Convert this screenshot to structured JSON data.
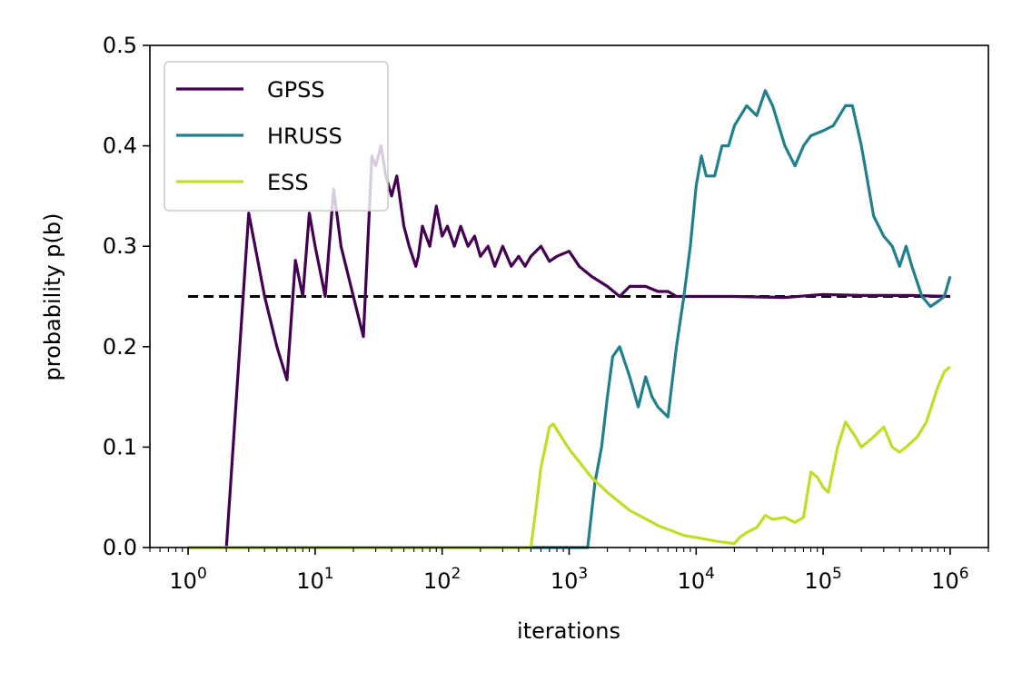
{
  "chart_data": {
    "type": "line",
    "xlabel": "iterations",
    "ylabel": "probability p(b)",
    "xscale": "log",
    "xlim": [
      0.5,
      2000000
    ],
    "ylim": [
      0,
      0.5
    ],
    "x_ticks": [
      {
        "value": 1,
        "base": "10",
        "exp": "0"
      },
      {
        "value": 10,
        "base": "10",
        "exp": "1"
      },
      {
        "value": 100,
        "base": "10",
        "exp": "2"
      },
      {
        "value": 1000,
        "base": "10",
        "exp": "3"
      },
      {
        "value": 10000,
        "base": "10",
        "exp": "4"
      },
      {
        "value": 100000,
        "base": "10",
        "exp": "5"
      },
      {
        "value": 1000000,
        "base": "10",
        "exp": "6"
      }
    ],
    "y_ticks": [
      {
        "value": 0.0,
        "label": "0.0"
      },
      {
        "value": 0.1,
        "label": "0.1"
      },
      {
        "value": 0.2,
        "label": "0.2"
      },
      {
        "value": 0.3,
        "label": "0.3"
      },
      {
        "value": 0.4,
        "label": "0.4"
      },
      {
        "value": 0.5,
        "label": "0.5"
      }
    ],
    "reference_line": {
      "y": 0.25,
      "x": [
        1,
        1000000
      ],
      "style": "dashed",
      "color": "#000000"
    },
    "legend_position": "top-left",
    "series": [
      {
        "name": "GPSS",
        "color": "#440154",
        "points": [
          [
            2,
            0.0
          ],
          [
            3,
            0.333
          ],
          [
            4,
            0.25
          ],
          [
            5,
            0.2
          ],
          [
            6,
            0.167
          ],
          [
            7,
            0.286
          ],
          [
            8,
            0.25
          ],
          [
            9,
            0.333
          ],
          [
            10,
            0.3
          ],
          [
            12,
            0.25
          ],
          [
            14,
            0.357
          ],
          [
            16,
            0.3
          ],
          [
            20,
            0.25
          ],
          [
            24,
            0.21
          ],
          [
            28,
            0.39
          ],
          [
            30,
            0.38
          ],
          [
            33,
            0.4
          ],
          [
            36,
            0.37
          ],
          [
            40,
            0.35
          ],
          [
            44,
            0.37
          ],
          [
            50,
            0.32
          ],
          [
            55,
            0.3
          ],
          [
            62,
            0.28
          ],
          [
            65,
            0.29
          ],
          [
            70,
            0.32
          ],
          [
            80,
            0.3
          ],
          [
            90,
            0.34
          ],
          [
            100,
            0.31
          ],
          [
            110,
            0.32
          ],
          [
            125,
            0.3
          ],
          [
            140,
            0.32
          ],
          [
            160,
            0.3
          ],
          [
            180,
            0.31
          ],
          [
            200,
            0.29
          ],
          [
            230,
            0.3
          ],
          [
            260,
            0.28
          ],
          [
            300,
            0.3
          ],
          [
            350,
            0.28
          ],
          [
            400,
            0.29
          ],
          [
            450,
            0.28
          ],
          [
            500,
            0.29
          ],
          [
            600,
            0.3
          ],
          [
            700,
            0.285
          ],
          [
            800,
            0.29
          ],
          [
            1000,
            0.295
          ],
          [
            1200,
            0.28
          ],
          [
            1500,
            0.27
          ],
          [
            2000,
            0.26
          ],
          [
            2500,
            0.25
          ],
          [
            3000,
            0.26
          ],
          [
            4000,
            0.26
          ],
          [
            5000,
            0.255
          ],
          [
            6000,
            0.255
          ],
          [
            7000,
            0.25
          ],
          [
            8000,
            0.25
          ],
          [
            10000,
            0.25
          ],
          [
            20000,
            0.25
          ],
          [
            50000,
            0.249
          ],
          [
            100000,
            0.252
          ],
          [
            200000,
            0.251
          ],
          [
            500000,
            0.251
          ],
          [
            1000000,
            0.25
          ]
        ]
      },
      {
        "name": "HRUSS",
        "color": "#21808d",
        "points": [
          [
            1,
            0.0
          ],
          [
            1400,
            0.0
          ],
          [
            1600,
            0.065
          ],
          [
            1800,
            0.1
          ],
          [
            2000,
            0.15
          ],
          [
            2200,
            0.19
          ],
          [
            2500,
            0.2
          ],
          [
            3000,
            0.17
          ],
          [
            3500,
            0.14
          ],
          [
            4000,
            0.17
          ],
          [
            4500,
            0.15
          ],
          [
            5000,
            0.14
          ],
          [
            6000,
            0.13
          ],
          [
            7000,
            0.2
          ],
          [
            8000,
            0.25
          ],
          [
            9000,
            0.3
          ],
          [
            10000,
            0.36
          ],
          [
            11000,
            0.39
          ],
          [
            12000,
            0.37
          ],
          [
            14000,
            0.37
          ],
          [
            16000,
            0.4
          ],
          [
            18000,
            0.4
          ],
          [
            20000,
            0.42
          ],
          [
            25000,
            0.44
          ],
          [
            30000,
            0.43
          ],
          [
            35000,
            0.455
          ],
          [
            40000,
            0.44
          ],
          [
            50000,
            0.4
          ],
          [
            60000,
            0.38
          ],
          [
            70000,
            0.4
          ],
          [
            80000,
            0.41
          ],
          [
            100000,
            0.415
          ],
          [
            120000,
            0.42
          ],
          [
            150000,
            0.44
          ],
          [
            170000,
            0.44
          ],
          [
            200000,
            0.4
          ],
          [
            250000,
            0.33
          ],
          [
            300000,
            0.31
          ],
          [
            350000,
            0.3
          ],
          [
            400000,
            0.28
          ],
          [
            450000,
            0.3
          ],
          [
            500000,
            0.28
          ],
          [
            600000,
            0.25
          ],
          [
            700000,
            0.24
          ],
          [
            800000,
            0.245
          ],
          [
            900000,
            0.25
          ],
          [
            1000000,
            0.27
          ]
        ]
      },
      {
        "name": "ESS",
        "color": "#bddf26",
        "points": [
          [
            1,
            0.0
          ],
          [
            500,
            0.0
          ],
          [
            550,
            0.04
          ],
          [
            600,
            0.08
          ],
          [
            650,
            0.1
          ],
          [
            700,
            0.12
          ],
          [
            750,
            0.123
          ],
          [
            1000,
            0.098
          ],
          [
            1500,
            0.07
          ],
          [
            2000,
            0.055
          ],
          [
            3000,
            0.037
          ],
          [
            5000,
            0.022
          ],
          [
            8000,
            0.012
          ],
          [
            10000,
            0.01
          ],
          [
            15000,
            0.006
          ],
          [
            20000,
            0.004
          ],
          [
            22000,
            0.01
          ],
          [
            25000,
            0.015
          ],
          [
            30000,
            0.02
          ],
          [
            35000,
            0.032
          ],
          [
            40000,
            0.028
          ],
          [
            50000,
            0.03
          ],
          [
            60000,
            0.025
          ],
          [
            70000,
            0.03
          ],
          [
            80000,
            0.075
          ],
          [
            90000,
            0.07
          ],
          [
            100000,
            0.06
          ],
          [
            110000,
            0.055
          ],
          [
            130000,
            0.1
          ],
          [
            150000,
            0.125
          ],
          [
            180000,
            0.11
          ],
          [
            200000,
            0.1
          ],
          [
            250000,
            0.11
          ],
          [
            300000,
            0.12
          ],
          [
            350000,
            0.1
          ],
          [
            400000,
            0.095
          ],
          [
            450000,
            0.1
          ],
          [
            550000,
            0.11
          ],
          [
            650000,
            0.125
          ],
          [
            800000,
            0.16
          ],
          [
            900000,
            0.175
          ],
          [
            1000000,
            0.18
          ]
        ]
      }
    ]
  }
}
